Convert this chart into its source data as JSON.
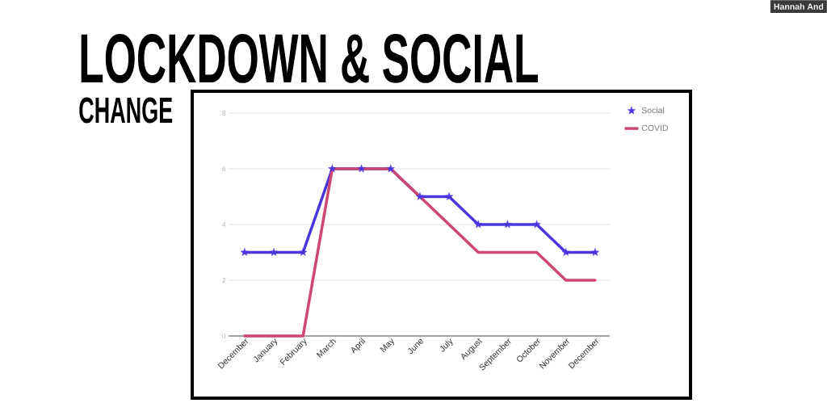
{
  "chart_data": {
    "type": "line",
    "title": "LOCKDOWN & SOCIAL",
    "subtitle": "CHANGE",
    "categories": [
      "December",
      "January",
      "February",
      "March",
      "April",
      "May",
      "June",
      "July",
      "August",
      "September",
      "October",
      "November",
      "December"
    ],
    "series": [
      {
        "name": "Social",
        "color": "#4b36de",
        "marker": "star",
        "values": [
          3,
          3,
          3,
          6,
          6,
          6,
          5,
          5,
          4,
          4,
          4,
          3,
          3
        ]
      },
      {
        "name": "COVID",
        "color": "#cf4670",
        "marker": "none",
        "values": [
          0,
          0,
          0,
          6,
          6,
          6,
          5,
          4,
          3,
          3,
          3,
          2,
          2
        ]
      }
    ],
    "ylim": [
      0,
      8
    ],
    "yticks": [
      0,
      2,
      4,
      6,
      8
    ],
    "grid": "y",
    "legend": "top right",
    "line_style": "solid",
    "annotations": [
      "Hannah And"
    ]
  }
}
